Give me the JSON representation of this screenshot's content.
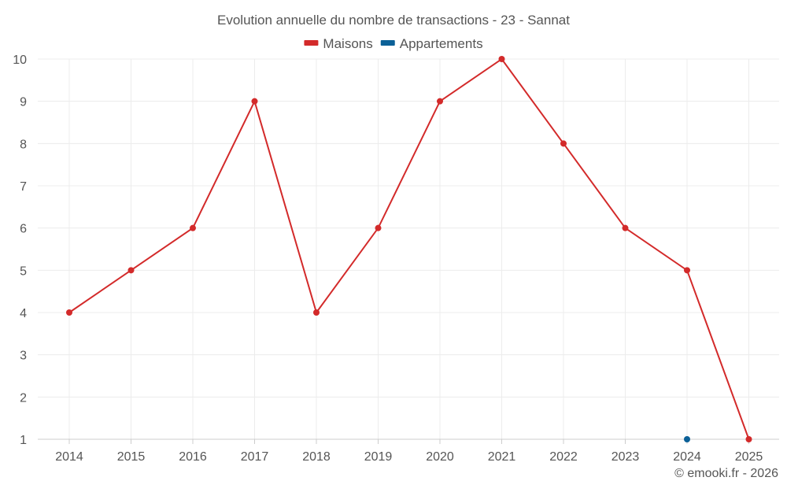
{
  "chart_data": {
    "type": "line",
    "title": "Evolution annuelle du nombre de transactions - 23 - Sannat",
    "categories": [
      "2014",
      "2015",
      "2016",
      "2017",
      "2018",
      "2019",
      "2020",
      "2021",
      "2022",
      "2023",
      "2024",
      "2025"
    ],
    "series": [
      {
        "name": "Maisons",
        "color": "#d32a2a",
        "values": [
          4,
          5,
          6,
          9,
          4,
          6,
          9,
          10,
          8,
          6,
          5,
          1
        ]
      },
      {
        "name": "Appartements",
        "color": "#0b6097",
        "values": [
          null,
          null,
          null,
          null,
          null,
          null,
          null,
          null,
          null,
          null,
          1,
          null
        ]
      }
    ],
    "ylim": [
      1,
      10
    ],
    "yticks": [
      1,
      2,
      3,
      4,
      5,
      6,
      7,
      8,
      9,
      10
    ],
    "grid": true,
    "legend_position": "top-center",
    "xlabel": "",
    "ylabel": ""
  },
  "footer": {
    "credit": "© emooki.fr - 2026"
  }
}
